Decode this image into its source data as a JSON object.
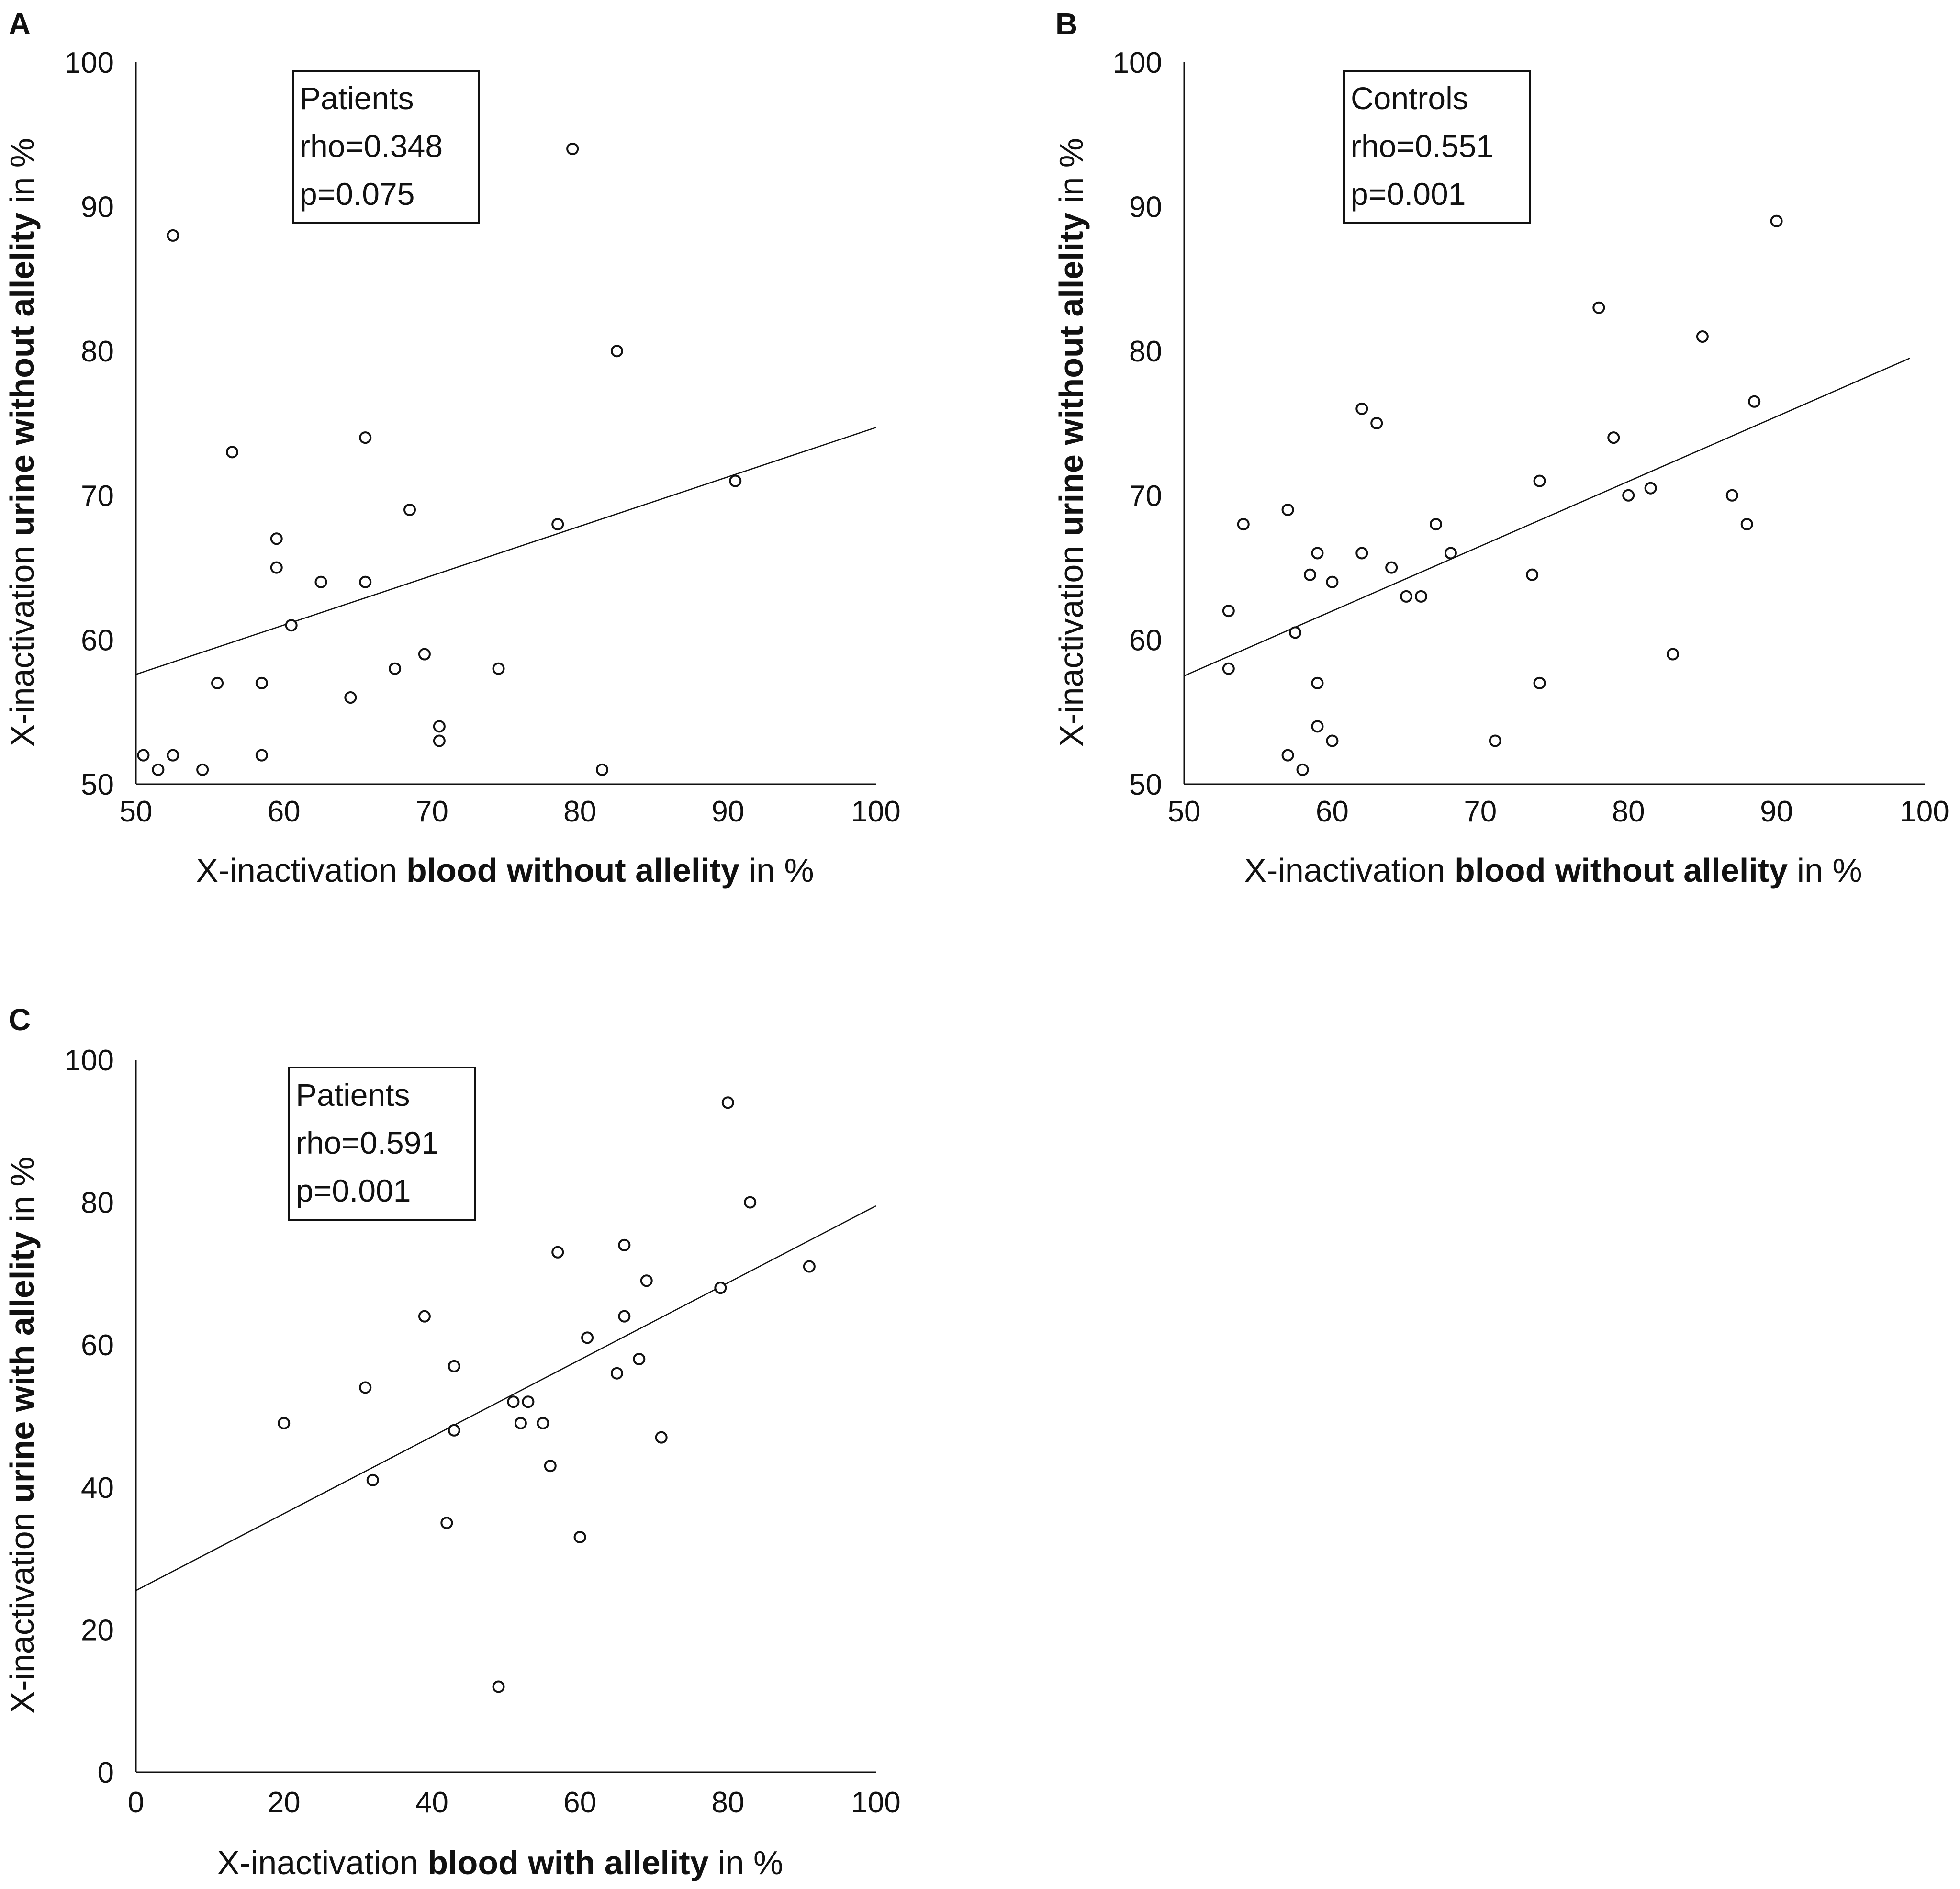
{
  "chart_data": [
    {
      "panel": "A",
      "type": "scatter",
      "title": "",
      "xlabel": {
        "pre": "X-inactivation ",
        "bold": "blood without allelity",
        "post": " in %"
      },
      "ylabel": {
        "pre": "X-inactivation ",
        "bold": "urine without allelity",
        "post": " in %"
      },
      "xlim": [
        50,
        100
      ],
      "ylim": [
        50,
        100
      ],
      "xticks": [
        50,
        60,
        70,
        80,
        90,
        100
      ],
      "yticks": [
        50,
        60,
        70,
        80,
        90,
        100
      ],
      "stats": {
        "group": "Patients",
        "rho": "rho=0.348",
        "p": "p=0.075"
      },
      "regression": {
        "x0": 50,
        "y0": 57.6,
        "x1": 100,
        "y1": 74.7
      },
      "points": [
        [
          50.5,
          52
        ],
        [
          51.5,
          51
        ],
        [
          52.5,
          52
        ],
        [
          54.5,
          51
        ],
        [
          52.5,
          88
        ],
        [
          55.5,
          57
        ],
        [
          56.5,
          73
        ],
        [
          58.5,
          57
        ],
        [
          58.5,
          52
        ],
        [
          59.5,
          67
        ],
        [
          59.5,
          65
        ],
        [
          60.5,
          61
        ],
        [
          62.5,
          64
        ],
        [
          64.5,
          56
        ],
        [
          65.5,
          74
        ],
        [
          65.5,
          64
        ],
        [
          67.5,
          58
        ],
        [
          68.5,
          69
        ],
        [
          69.5,
          59
        ],
        [
          70.5,
          54
        ],
        [
          70.5,
          53
        ],
        [
          74.5,
          58
        ],
        [
          78.5,
          68
        ],
        [
          79.5,
          94
        ],
        [
          81.5,
          51
        ],
        [
          82.5,
          80
        ],
        [
          90.5,
          71
        ]
      ]
    },
    {
      "panel": "B",
      "type": "scatter",
      "title": "",
      "xlabel": {
        "pre": "X-inactivation ",
        "bold": "blood without allelity",
        "post": " in %"
      },
      "ylabel": {
        "pre": "X-inactivation ",
        "bold": "urine without allelity",
        "post": " in %"
      },
      "xlim": [
        50,
        100
      ],
      "ylim": [
        50,
        100
      ],
      "xticks": [
        50,
        60,
        70,
        80,
        90,
        100
      ],
      "yticks": [
        50,
        60,
        70,
        80,
        90,
        100
      ],
      "stats": {
        "group": "Controls",
        "rho": "rho=0.551",
        "p": "p=0.001"
      },
      "regression": {
        "x0": 50,
        "y0": 57.5,
        "x1": 99,
        "y1": 79.5
      },
      "points": [
        [
          53,
          62
        ],
        [
          53,
          58
        ],
        [
          54,
          68
        ],
        [
          57,
          69
        ],
        [
          57,
          52
        ],
        [
          57.5,
          60.5
        ],
        [
          58,
          51
        ],
        [
          58.5,
          64.5
        ],
        [
          59,
          66
        ],
        [
          59,
          57
        ],
        [
          59,
          54
        ],
        [
          60,
          64
        ],
        [
          60,
          53
        ],
        [
          62,
          76
        ],
        [
          62,
          66
        ],
        [
          63,
          75
        ],
        [
          64,
          65
        ],
        [
          65,
          63
        ],
        [
          66,
          63
        ],
        [
          67,
          68
        ],
        [
          68,
          66
        ],
        [
          71,
          53
        ],
        [
          73.5,
          64.5
        ],
        [
          74,
          71
        ],
        [
          74,
          57
        ],
        [
          78,
          83
        ],
        [
          79,
          74
        ],
        [
          80,
          70
        ],
        [
          81.5,
          70.5
        ],
        [
          83,
          59
        ],
        [
          85,
          81
        ],
        [
          87,
          70
        ],
        [
          88,
          68
        ],
        [
          88.5,
          76.5
        ],
        [
          90,
          89
        ]
      ]
    },
    {
      "panel": "C",
      "type": "scatter",
      "title": "",
      "xlabel": {
        "pre": "X-inactivation ",
        "bold": "blood with allelity",
        "post": " in %"
      },
      "ylabel": {
        "pre": "X-inactivation ",
        "bold": "urine with allelity",
        "post": " in %"
      },
      "xlim": [
        0,
        100
      ],
      "ylim": [
        0,
        100
      ],
      "xticks": [
        0,
        20,
        40,
        60,
        80,
        100
      ],
      "yticks": [
        0,
        20,
        40,
        60,
        80,
        100
      ],
      "stats": {
        "group": "Patients",
        "rho": "rho=0.591",
        "p": "p=0.001"
      },
      "regression": {
        "x0": 0,
        "y0": 25.5,
        "x1": 100,
        "y1": 79.5
      },
      "points": [
        [
          20,
          49
        ],
        [
          31,
          54
        ],
        [
          32,
          41
        ],
        [
          39,
          64
        ],
        [
          42,
          35
        ],
        [
          43,
          57
        ],
        [
          43,
          48
        ],
        [
          49,
          12
        ],
        [
          51,
          52
        ],
        [
          52,
          49
        ],
        [
          53,
          52
        ],
        [
          55,
          49
        ],
        [
          56,
          43
        ],
        [
          57,
          73
        ],
        [
          60,
          33
        ],
        [
          61,
          61
        ],
        [
          65,
          56
        ],
        [
          66,
          74
        ],
        [
          66,
          64
        ],
        [
          68,
          58
        ],
        [
          69,
          69
        ],
        [
          71,
          47
        ],
        [
          79,
          68
        ],
        [
          80,
          94
        ],
        [
          83,
          80
        ],
        [
          91,
          71
        ]
      ]
    }
  ]
}
